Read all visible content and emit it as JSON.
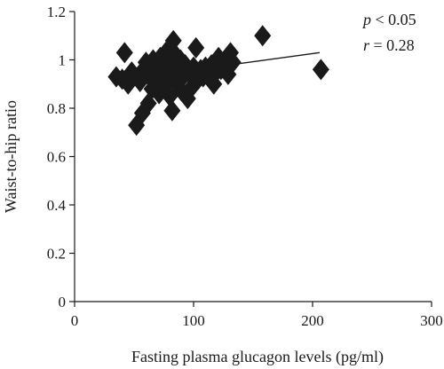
{
  "chart_data": {
    "type": "scatter",
    "xlabel": "Fasting plasma glucagon levels (pg/ml)",
    "ylabel": "Waist-to-hip ratio",
    "xlim": [
      0,
      300
    ],
    "ylim": [
      0,
      1.2
    ],
    "x_ticks": [
      "0",
      "100",
      "200",
      "300"
    ],
    "y_ticks": [
      "0",
      "0.2",
      "0.4",
      "0.6",
      "0.8",
      "1",
      "1.2"
    ],
    "x_tick_values": [
      0,
      100,
      200,
      300
    ],
    "y_tick_values": [
      0,
      0.2,
      0.4,
      0.6,
      0.8,
      1.0,
      1.2
    ],
    "annotation": {
      "p_symbol": "p",
      "p_text": " < 0.05",
      "r_symbol": "r",
      "r_text": " = 0.28"
    },
    "trendline": {
      "x": [
        35,
        206
      ],
      "y": [
        0.915,
        1.03
      ]
    },
    "points": [
      {
        "x": 35,
        "y": 0.93
      },
      {
        "x": 40,
        "y": 0.92
      },
      {
        "x": 42,
        "y": 1.03
      },
      {
        "x": 45,
        "y": 0.9
      },
      {
        "x": 48,
        "y": 0.95
      },
      {
        "x": 52,
        "y": 0.73
      },
      {
        "x": 55,
        "y": 0.91
      },
      {
        "x": 57,
        "y": 0.78
      },
      {
        "x": 58,
        "y": 0.96
      },
      {
        "x": 60,
        "y": 0.99
      },
      {
        "x": 62,
        "y": 0.82
      },
      {
        "x": 63,
        "y": 0.93
      },
      {
        "x": 65,
        "y": 0.88
      },
      {
        "x": 66,
        "y": 1.0
      },
      {
        "x": 68,
        "y": 0.91
      },
      {
        "x": 70,
        "y": 0.97
      },
      {
        "x": 71,
        "y": 0.86
      },
      {
        "x": 72,
        "y": 1.01
      },
      {
        "x": 74,
        "y": 0.93
      },
      {
        "x": 75,
        "y": 0.89
      },
      {
        "x": 76,
        "y": 0.99
      },
      {
        "x": 78,
        "y": 1.04
      },
      {
        "x": 79,
        "y": 0.92
      },
      {
        "x": 80,
        "y": 0.85
      },
      {
        "x": 81,
        "y": 0.96
      },
      {
        "x": 82,
        "y": 0.79
      },
      {
        "x": 83,
        "y": 1.08
      },
      {
        "x": 84,
        "y": 0.94
      },
      {
        "x": 85,
        "y": 1.02
      },
      {
        "x": 86,
        "y": 0.9
      },
      {
        "x": 88,
        "y": 0.96
      },
      {
        "x": 89,
        "y": 1.0
      },
      {
        "x": 90,
        "y": 0.87
      },
      {
        "x": 91,
        "y": 0.93
      },
      {
        "x": 93,
        "y": 0.98
      },
      {
        "x": 95,
        "y": 0.84
      },
      {
        "x": 97,
        "y": 0.94
      },
      {
        "x": 99,
        "y": 0.89
      },
      {
        "x": 100,
        "y": 0.97
      },
      {
        "x": 102,
        "y": 1.05
      },
      {
        "x": 104,
        "y": 0.92
      },
      {
        "x": 106,
        "y": 0.96
      },
      {
        "x": 108,
        "y": 0.93
      },
      {
        "x": 110,
        "y": 0.97
      },
      {
        "x": 113,
        "y": 0.93
      },
      {
        "x": 115,
        "y": 0.98
      },
      {
        "x": 117,
        "y": 0.9
      },
      {
        "x": 119,
        "y": 0.95
      },
      {
        "x": 121,
        "y": 1.01
      },
      {
        "x": 123,
        "y": 0.96
      },
      {
        "x": 125,
        "y": 0.99
      },
      {
        "x": 127,
        "y": 0.97
      },
      {
        "x": 129,
        "y": 0.94
      },
      {
        "x": 131,
        "y": 1.03
      },
      {
        "x": 133,
        "y": 0.99
      },
      {
        "x": 158,
        "y": 1.1
      },
      {
        "x": 207,
        "y": 0.96
      }
    ]
  }
}
